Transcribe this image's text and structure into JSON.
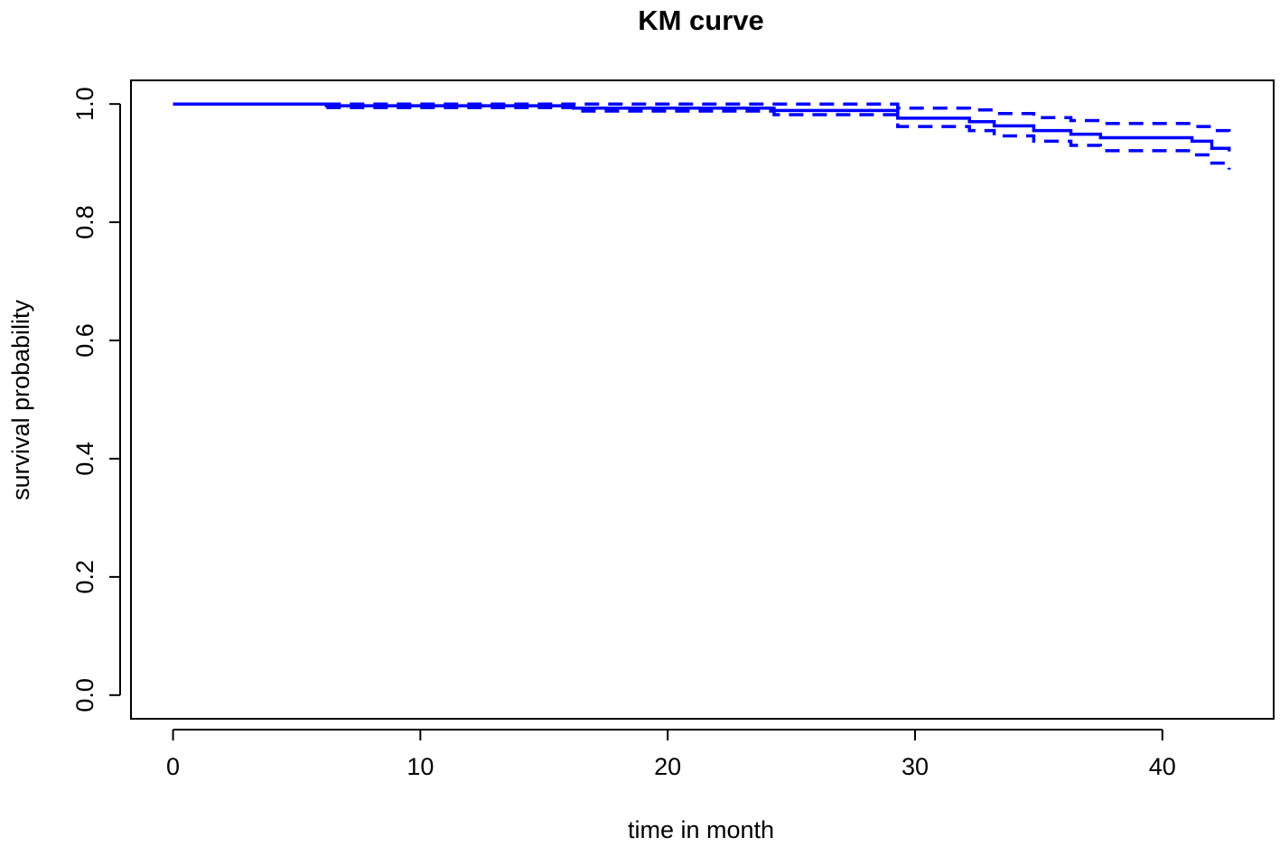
{
  "chart_data": {
    "type": "line",
    "title": "KM curve",
    "xlabel": "time in month",
    "ylabel": "survival probability",
    "xlim": [
      -1.7,
      44.5
    ],
    "ylim": [
      -0.04,
      1.04
    ],
    "x_ticks": [
      0,
      10,
      20,
      30,
      40
    ],
    "x_tick_labels": [
      "0",
      "10",
      "20",
      "30",
      "40"
    ],
    "y_ticks": [
      0.0,
      0.2,
      0.4,
      0.6,
      0.8,
      1.0
    ],
    "y_tick_labels": [
      "0.0",
      "0.2",
      "0.4",
      "0.6",
      "0.8",
      "1.0"
    ],
    "grid": false,
    "legend": "none",
    "series": [
      {
        "role": "estimate",
        "style": "solid",
        "color": "#0000ff",
        "x": [
          0,
          6.2,
          16.2,
          24.3,
          29.3,
          32.2,
          33.2,
          34.8,
          36.3,
          37.5,
          41.2,
          42.0,
          42.7
        ],
        "y": [
          1.0,
          0.997,
          0.993,
          0.989,
          0.976,
          0.97,
          0.963,
          0.955,
          0.949,
          0.943,
          0.937,
          0.925,
          0.92
        ]
      },
      {
        "role": "upper confidence limit",
        "style": "dashed",
        "color": "#0000ff",
        "x": [
          6.2,
          28.8,
          29.3,
          32.2,
          33.2,
          34.8,
          36.3,
          37.5,
          41.2,
          42.0,
          42.7
        ],
        "y": [
          1.0,
          1.0,
          0.993,
          0.99,
          0.984,
          0.977,
          0.972,
          0.967,
          0.962,
          0.955,
          0.948
        ]
      },
      {
        "role": "lower confidence limit",
        "style": "dashed",
        "color": "#0000ff",
        "x": [
          6.2,
          16.2,
          24.3,
          29.3,
          32.2,
          33.2,
          34.8,
          36.3,
          37.5,
          41.2,
          42.0,
          42.7
        ],
        "y": [
          0.994,
          0.988,
          0.982,
          0.962,
          0.955,
          0.946,
          0.937,
          0.93,
          0.921,
          0.914,
          0.9,
          0.889
        ]
      }
    ]
  }
}
